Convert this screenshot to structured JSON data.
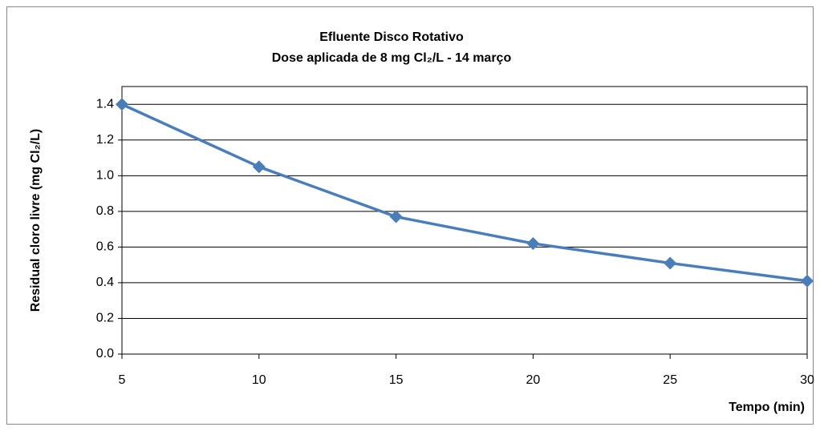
{
  "chart_data": {
    "type": "line",
    "title": [
      "Efluente Disco Rotativo",
      "Dose aplicada  de 8 mg Cl₂/L - 14 março"
    ],
    "x_label": "Tempo (min)",
    "y_label": "Residual cloro livre (mg Cl₂/L)",
    "x": [
      5,
      10,
      15,
      20,
      25,
      30
    ],
    "values": [
      1.4,
      1.05,
      0.77,
      0.62,
      0.51,
      0.41
    ],
    "color": "#4a7ebb",
    "xlim": [
      5,
      30
    ],
    "xticks": [
      5,
      10,
      15,
      20,
      25,
      30
    ],
    "ylim": [
      0,
      1.5
    ],
    "yticks": [
      {
        "value": 0,
        "label": "0.0"
      },
      0.2,
      0.4,
      0.6,
      0.8,
      {
        "value": 1,
        "label": "1.0"
      },
      1.2,
      1.4
    ],
    "grid": true
  }
}
